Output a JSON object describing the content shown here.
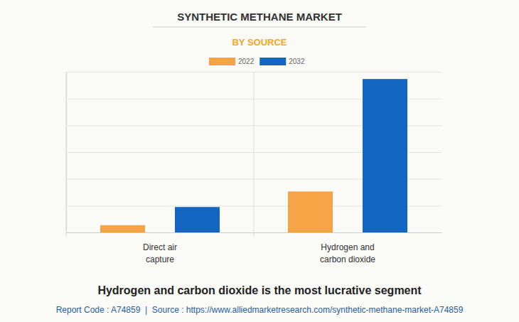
{
  "chart_data": {
    "type": "bar",
    "title": "SYNTHETIC METHANE MARKET",
    "subtitle": "BY SOURCE",
    "caption": "Hydrogen and carbon dioxide is the most lucrative segment",
    "footer": "Report Code : A74859  |  Source : https://www.alliedmarketresearch.com/synthetic-methane-market-A74859",
    "categories": [
      "Direct air capture",
      "Hydrogen and carbon dioxide"
    ],
    "series": [
      {
        "name": "2022",
        "color": "#f4a445",
        "values": [
          0.27,
          1.53
        ]
      },
      {
        "name": "2032",
        "color": "#1266c2",
        "values": [
          0.95,
          5.73
        ]
      }
    ],
    "ylim": [
      0,
      6
    ],
    "yticks": [
      0,
      1,
      2,
      3,
      4,
      5,
      6
    ],
    "grid": true,
    "legend": "top",
    "tick_labels": "x"
  }
}
